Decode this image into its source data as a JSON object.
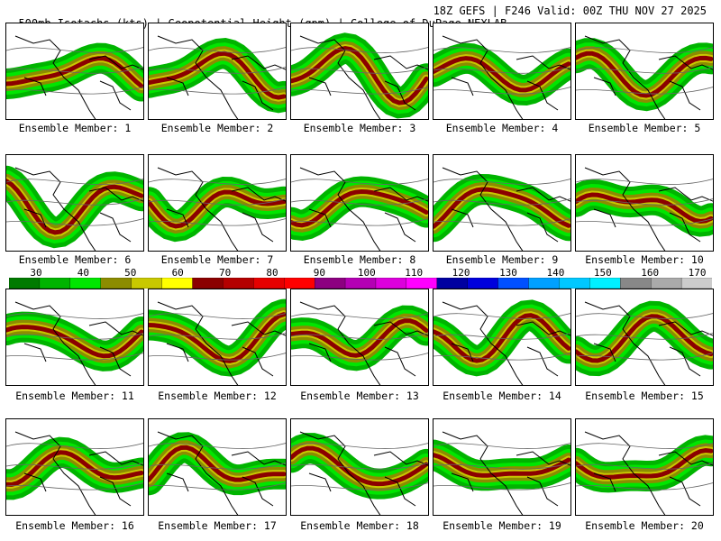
{
  "header": {
    "left": "500mb Isotachs (kts) | Geopotential Height (gpm) | College of DuPage NEXLAB",
    "right": "18Z GEFS | F246 Valid: 00Z THU NOV 27 2025"
  },
  "colorbar": {
    "labels": [
      "30",
      "40",
      "50",
      "60",
      "70",
      "80",
      "90",
      "100",
      "110",
      "120",
      "130",
      "140",
      "150",
      "160",
      "170"
    ],
    "colors": [
      "#007a00",
      "#00b400",
      "#00e600",
      "#8c8c00",
      "#c8c800",
      "#ffff00",
      "#8b0000",
      "#b40000",
      "#e60000",
      "#ff0000",
      "#8c0080",
      "#b400b4",
      "#dc00dc",
      "#ff00ff",
      "#0000a0",
      "#0000dc",
      "#0050ff",
      "#00a0ff",
      "#00c8ff",
      "#00f0ff",
      "#888888",
      "#aaaaaa",
      "#cccccc"
    ]
  },
  "members": [
    {
      "label": "Ensemble Member: 1"
    },
    {
      "label": "Ensemble Member: 2"
    },
    {
      "label": "Ensemble Member: 3"
    },
    {
      "label": "Ensemble Member: 4"
    },
    {
      "label": "Ensemble Member: 5"
    },
    {
      "label": "Ensemble Member: 6"
    },
    {
      "label": "Ensemble Member: 7"
    },
    {
      "label": "Ensemble Member: 8"
    },
    {
      "label": "Ensemble Member: 9"
    },
    {
      "label": "Ensemble Member: 10"
    },
    {
      "label": "Ensemble Member: 11"
    },
    {
      "label": "Ensemble Member: 12"
    },
    {
      "label": "Ensemble Member: 13"
    },
    {
      "label": "Ensemble Member: 14"
    },
    {
      "label": "Ensemble Member: 15"
    },
    {
      "label": "Ensemble Member: 16"
    },
    {
      "label": "Ensemble Member: 17"
    },
    {
      "label": "Ensemble Member: 18"
    },
    {
      "label": "Ensemble Member: 19"
    },
    {
      "label": "Ensemble Member: 20"
    }
  ]
}
